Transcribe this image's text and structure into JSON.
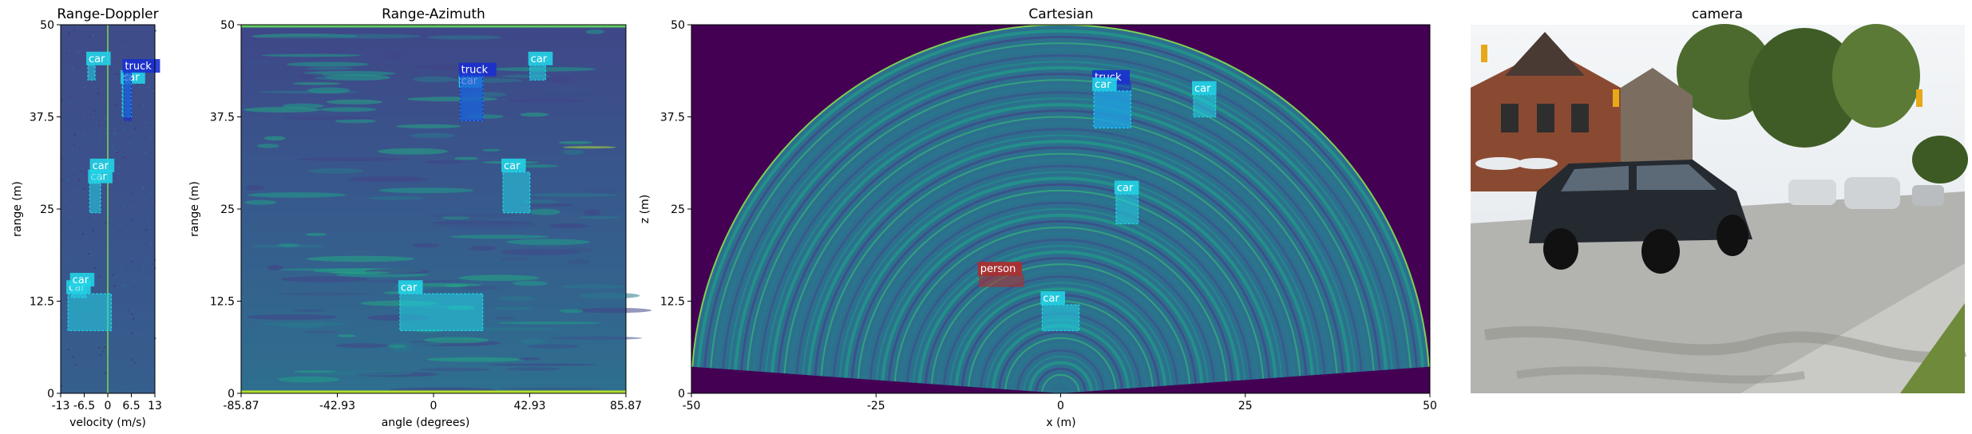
{
  "chart_data": [
    {
      "type": "heatmap",
      "title": "Range-Doppler",
      "xlabel": "velocity (m/s)",
      "ylabel": "range (m)",
      "xticks": [
        "-13",
        "-6.5",
        "0",
        "6.5",
        "13"
      ],
      "yticks": [
        "0",
        "12.5",
        "25",
        "37.5",
        "50"
      ],
      "xlim": [
        -13,
        13
      ],
      "ylim": [
        0,
        50
      ],
      "detections": [
        {
          "label": "car",
          "x": [
            -5.5,
            -3.5
          ],
          "y": [
            42.5,
            44.5
          ],
          "color": "#22d3e6"
        },
        {
          "label": "car",
          "x": [
            -5.0,
            -2.0
          ],
          "y": [
            24.5,
            28.5
          ],
          "color": "#22d3e6"
        },
        {
          "label": "car",
          "x": [
            -4.5,
            -2.0
          ],
          "y": [
            28.5,
            30.0
          ],
          "color": "#22d3e6"
        },
        {
          "label": "car",
          "x": [
            -11.0,
            1.0
          ],
          "y": [
            8.5,
            13.5
          ],
          "color": "#22d3e6"
        },
        {
          "label": "car",
          "x": [
            -10.0,
            -6.0
          ],
          "y": [
            13.0,
            14.5
          ],
          "color": "#22d3e6"
        },
        {
          "label": "car",
          "x": [
            4.0,
            6.5
          ],
          "y": [
            37.5,
            42.0
          ],
          "color": "#22d3e6"
        },
        {
          "label": "truck",
          "x": [
            4.5,
            6.5
          ],
          "y": [
            37.0,
            43.5
          ],
          "color": "#1a2fd0"
        }
      ]
    },
    {
      "type": "heatmap",
      "title": "Range-Azimuth",
      "xlabel": "angle (degrees)",
      "ylabel": "range (m)",
      "xticks": [
        "-85.87",
        "-42.93",
        "0",
        "42.93",
        "85.87"
      ],
      "yticks": [
        "0",
        "12.5",
        "25",
        "37.5",
        "50"
      ],
      "xlim": [
        -85.87,
        85.87
      ],
      "ylim": [
        0,
        50
      ],
      "detections": [
        {
          "label": "car",
          "x": [
            -15.0,
            22.0
          ],
          "y": [
            8.5,
            13.5
          ],
          "color": "#22d3e6"
        },
        {
          "label": "car",
          "x": [
            31.0,
            43.0
          ],
          "y": [
            24.5,
            30.0
          ],
          "color": "#22d3e6"
        },
        {
          "label": "car",
          "x": [
            43.0,
            50.0
          ],
          "y": [
            42.5,
            44.5
          ],
          "color": "#22d3e6"
        },
        {
          "label": "car",
          "x": [
            12.0,
            22.0
          ],
          "y": [
            37.0,
            41.5
          ],
          "color": "#22d3e6"
        },
        {
          "label": "truck",
          "x": [
            12.0,
            22.0
          ],
          "y": [
            37.0,
            43.0
          ],
          "color": "#1a2fd0"
        }
      ]
    },
    {
      "type": "heatmap",
      "title": "Cartesian",
      "xlabel": "x (m)",
      "ylabel": "z (m)",
      "xticks": [
        "-50",
        "-25",
        "0",
        "25",
        "50"
      ],
      "yticks": [
        "0",
        "12.5",
        "25",
        "37.5",
        "50"
      ],
      "xlim": [
        -50,
        50
      ],
      "ylim": [
        0,
        50
      ],
      "detections": [
        {
          "label": "truck",
          "x": [
            4.5,
            9.5
          ],
          "y": [
            36.0,
            42.0
          ],
          "color": "#1a2fd0"
        },
        {
          "label": "car",
          "x": [
            4.5,
            9.5
          ],
          "y": [
            36.0,
            41.0
          ],
          "color": "#22d3e6"
        },
        {
          "label": "car",
          "x": [
            18.0,
            21.0
          ],
          "y": [
            37.5,
            40.5
          ],
          "color": "#22d3e6"
        },
        {
          "label": "car",
          "x": [
            7.5,
            10.5
          ],
          "y": [
            23.0,
            27.0
          ],
          "color": "#22d3e6"
        },
        {
          "label": "car",
          "x": [
            -2.5,
            2.5
          ],
          "y": [
            8.5,
            12.0
          ],
          "color": "#22d3e6"
        },
        {
          "label": "person",
          "x": [
            -11.0,
            -5.0
          ],
          "y": [
            14.5,
            16.0
          ],
          "color": "#b22b2b"
        }
      ]
    }
  ],
  "camera": {
    "title": "camera"
  },
  "colors": {
    "viridis_bg": "#3b528b",
    "viridis_dark": "#440154",
    "car_box": "#22d3e6",
    "truck_box": "#1a2fd0",
    "person_box": "#b22b2b"
  }
}
